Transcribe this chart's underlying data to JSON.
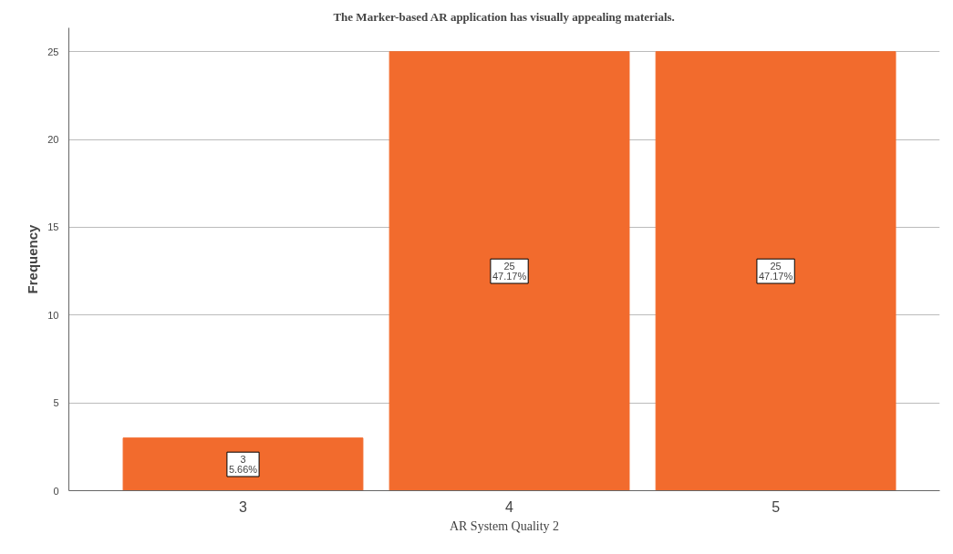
{
  "chart_data": {
    "type": "bar",
    "title": "The Marker-based AR application has visually appealing materials.",
    "xlabel": "AR System Quality 2",
    "ylabel": "Frequency",
    "categories": [
      "3",
      "4",
      "5"
    ],
    "values": [
      3,
      25,
      25
    ],
    "color": "#f26b2d",
    "value_labels": [
      "3\n5.66%",
      "25\n47.17%",
      "25\n47.17%"
    ],
    "ylim": [
      0,
      26.36
    ],
    "yticks": [
      0,
      5,
      10,
      15,
      20,
      25
    ],
    "grid": "y"
  }
}
